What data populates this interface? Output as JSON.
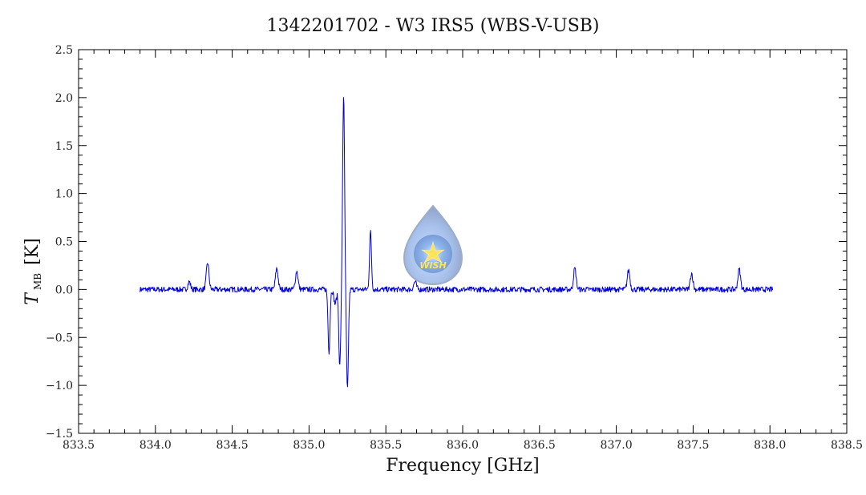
{
  "chart_data": {
    "type": "line",
    "title": "1342201702 - W3 IRS5 (WBS-V-USB)",
    "xlabel": "Frequency [GHz]",
    "ylabel_main": "T",
    "ylabel_sub": "MB",
    "ylabel_unit": "[K]",
    "xlim": [
      833.5,
      838.5
    ],
    "ylim": [
      -1.5,
      2.5
    ],
    "xticks": [
      833.5,
      834.0,
      834.5,
      835.0,
      835.5,
      836.0,
      836.5,
      837.0,
      837.5,
      838.0,
      838.5
    ],
    "yticks": [
      -1.5,
      -1.0,
      -0.5,
      0.0,
      0.5,
      1.0,
      1.5,
      2.0,
      2.5
    ],
    "grid": false,
    "color": "#0000dd",
    "x_range": [
      833.9,
      838.02
    ],
    "noise_rms": 0.018,
    "features": [
      {
        "x": 834.22,
        "y": 0.08
      },
      {
        "x": 834.34,
        "y": 0.28
      },
      {
        "x": 834.79,
        "y": 0.22
      },
      {
        "x": 834.92,
        "y": 0.19
      },
      {
        "x": 835.13,
        "y": -0.65
      },
      {
        "x": 835.17,
        "y": -0.15
      },
      {
        "x": 835.2,
        "y": -0.8
      },
      {
        "x": 835.225,
        "y": 2.03
      },
      {
        "x": 835.25,
        "y": -1.05
      },
      {
        "x": 835.4,
        "y": 0.6
      },
      {
        "x": 835.69,
        "y": 0.08
      },
      {
        "x": 836.73,
        "y": 0.22
      },
      {
        "x": 837.08,
        "y": 0.2
      },
      {
        "x": 837.49,
        "y": 0.17
      },
      {
        "x": 837.8,
        "y": 0.21
      }
    ]
  },
  "logo": {
    "text": "WISH",
    "icon": "star-icon"
  }
}
